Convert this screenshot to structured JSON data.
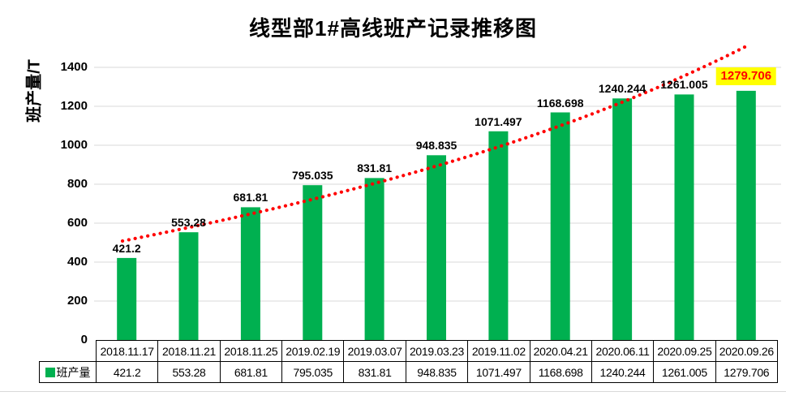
{
  "title": "线型部1#高线班产记录推移图",
  "y_axis": {
    "title": "班产量/T",
    "ticks": [
      "0",
      "200",
      "400",
      "600",
      "800",
      "1000",
      "1200",
      "1400"
    ]
  },
  "legend": {
    "series_label": "班产量"
  },
  "colors": {
    "bar": "#00B050",
    "trendline": "#FF0000",
    "gridline": "#D9D9D9",
    "highlight_bg": "#FFFF00",
    "highlight_text": "#FF0000",
    "text": "#000000",
    "table_border": "#000000"
  },
  "chart_data": {
    "type": "bar",
    "title": "线型部1#高线班产记录推移图",
    "xlabel": "",
    "ylabel": "班产量/T",
    "ylim": [
      0,
      1400
    ],
    "ytick_step": 200,
    "grid": "horizontal",
    "legend_position": "data-table-left",
    "categories": [
      "2018.11.17",
      "2018.11.21",
      "2018.11.25",
      "2019.02.19",
      "2019.03.07",
      "2019.03.23",
      "2019.11.02",
      "2020.04.21",
      "2020.06.11",
      "2020.09.25",
      "2020.09.26"
    ],
    "series": [
      {
        "name": "班产量",
        "values": [
          421.2,
          553.28,
          681.81,
          795.035,
          831.81,
          948.835,
          1071.497,
          1168.698,
          1240.244,
          1261.005,
          1279.706
        ]
      }
    ],
    "data_labels": [
      "421.2",
      "553.28",
      "681.81",
      "795.035",
      "831.81",
      "948.835",
      "1071.497",
      "1168.698",
      "1240.244",
      "1261.005",
      "1279.706"
    ],
    "highlighted_label_index": 10,
    "trendline": {
      "type": "curved",
      "style": "dotted",
      "color": "#FF0000"
    }
  }
}
